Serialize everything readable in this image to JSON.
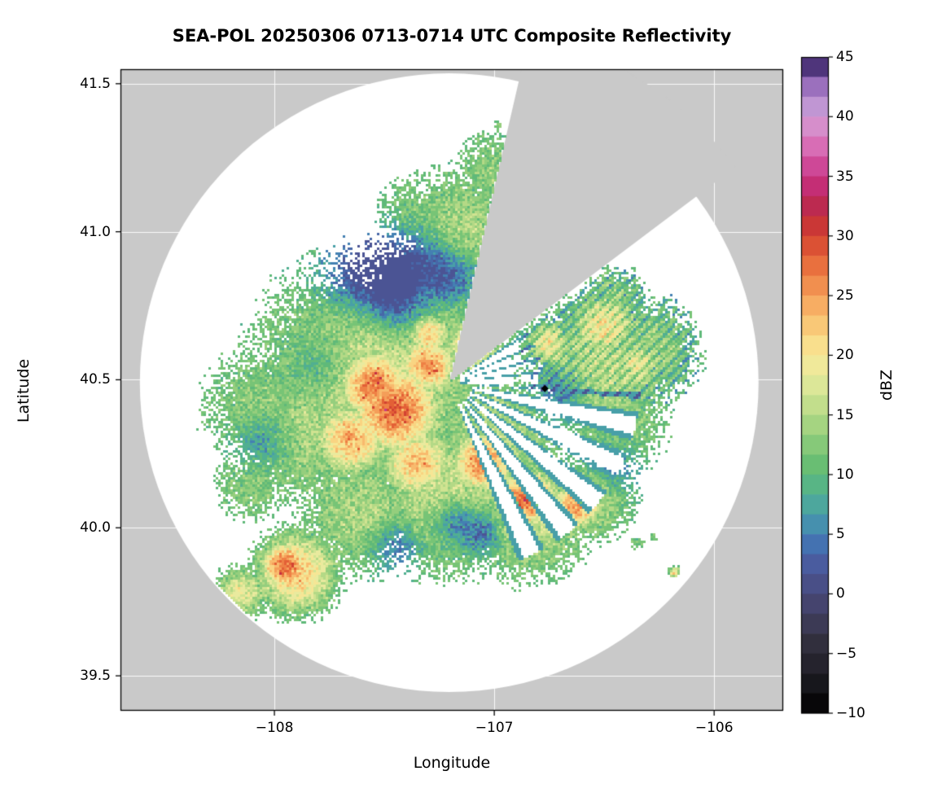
{
  "chart_data": {
    "type": "heatmap",
    "title": "SEA-POL 20250306 0713-0714 UTC Composite Reflectivity",
    "xlabel": "Longitude",
    "ylabel": "Latitude",
    "xlim": [
      -108.7,
      -105.686
    ],
    "ylim": [
      39.382,
      41.549
    ],
    "xticks": [
      {
        "value": -108,
        "label": "−108"
      },
      {
        "value": -107,
        "label": "−107"
      },
      {
        "value": -106,
        "label": "−106"
      }
    ],
    "yticks": [
      {
        "value": 39.5,
        "label": "39.5"
      },
      {
        "value": 40.0,
        "label": "40.0"
      },
      {
        "value": 40.5,
        "label": "40.5"
      },
      {
        "value": 41.0,
        "label": "41.0"
      },
      {
        "value": 41.5,
        "label": "41.5"
      }
    ],
    "background_outside_range_color": "#c9c9c9",
    "inside_range_no_echo_color": "#ffffff",
    "gridline_color": "rgba(255,255,255,0.9)",
    "colorbar": {
      "label": "dBZ",
      "min": -10,
      "max": 45,
      "segments": 33,
      "ticks": [
        {
          "value": 45,
          "label": "45"
        },
        {
          "value": 40,
          "label": "40"
        },
        {
          "value": 35,
          "label": "35"
        },
        {
          "value": 30,
          "label": "30"
        },
        {
          "value": 25,
          "label": "25"
        },
        {
          "value": 20,
          "label": "20"
        },
        {
          "value": 15,
          "label": "15"
        },
        {
          "value": 10,
          "label": "10"
        },
        {
          "value": 5,
          "label": "5"
        },
        {
          "value": 0,
          "label": "0"
        },
        {
          "value": -5,
          "label": "−5"
        },
        {
          "value": -10,
          "label": "−10"
        }
      ],
      "stops": [
        [
          -10,
          "#000000"
        ],
        [
          -7,
          "#1c1b22"
        ],
        [
          -4,
          "#32303f"
        ],
        [
          -1,
          "#45436b"
        ],
        [
          2,
          "#4c5699"
        ],
        [
          4.5,
          "#4376b5"
        ],
        [
          6.5,
          "#479daa"
        ],
        [
          8.5,
          "#52b18f"
        ],
        [
          10.5,
          "#63bc72"
        ],
        [
          12.5,
          "#86c979"
        ],
        [
          14.5,
          "#abd683"
        ],
        [
          16.5,
          "#cde290"
        ],
        [
          18.5,
          "#ebeb9f"
        ],
        [
          20.5,
          "#f9e491"
        ],
        [
          22.5,
          "#f9c877"
        ],
        [
          24.5,
          "#f6a75f"
        ],
        [
          26.5,
          "#ef8347"
        ],
        [
          28.5,
          "#e25d35"
        ],
        [
          30.5,
          "#cd3a31"
        ],
        [
          32.5,
          "#bc2a50"
        ],
        [
          34.5,
          "#c62f7c"
        ],
        [
          36.5,
          "#d254a5"
        ],
        [
          38.5,
          "#dd86c5"
        ],
        [
          40.5,
          "#c79ed8"
        ],
        [
          42.5,
          "#9b70bd"
        ],
        [
          44,
          "#553a85"
        ],
        [
          45,
          "#2e1d4a"
        ]
      ]
    },
    "radar": {
      "center_lon": -107.205,
      "center_lat": 40.49,
      "range_lat_deg": 1.045,
      "blocked_sector_az_deg": [
        13,
        53
      ],
      "no_echo_fan_az_deg": [
        93,
        160
      ],
      "fan_period_deg": 12.8,
      "apex_streaks_az_deg": [
        57,
        92
      ]
    },
    "site_marker": {
      "lon": -106.77,
      "lat": 40.47,
      "shape": "diamond",
      "color": "#000000"
    },
    "reflectivity_blobs_dbz": [
      [
        -107.55,
        40.5,
        0.55,
        17
      ],
      [
        -107.85,
        40.35,
        0.4,
        15
      ],
      [
        -108.05,
        40.4,
        0.3,
        14
      ],
      [
        -107.3,
        40.75,
        0.35,
        16
      ],
      [
        -107.15,
        41.0,
        0.3,
        15
      ],
      [
        -107.0,
        41.2,
        0.22,
        13
      ],
      [
        -107.35,
        41.05,
        0.22,
        13
      ],
      [
        -106.95,
        40.8,
        0.25,
        15
      ],
      [
        -107.75,
        40.7,
        0.25,
        13
      ],
      [
        -108.1,
        40.15,
        0.2,
        13
      ],
      [
        -107.6,
        40.05,
        0.3,
        15
      ],
      [
        -107.2,
        40.1,
        0.35,
        17
      ],
      [
        -106.85,
        40.05,
        0.3,
        17
      ],
      [
        -106.55,
        40.1,
        0.2,
        16
      ],
      [
        -107.0,
        40.3,
        0.3,
        16
      ],
      [
        -106.5,
        40.55,
        0.33,
        17
      ],
      [
        -106.3,
        40.6,
        0.25,
        15
      ],
      [
        -106.45,
        40.35,
        0.25,
        14
      ],
      [
        -106.45,
        40.78,
        0.15,
        14
      ],
      [
        -107.9,
        39.85,
        0.18,
        22
      ],
      [
        -108.15,
        39.78,
        0.12,
        18
      ],
      [
        -107.45,
        40.4,
        0.18,
        28
      ],
      [
        -107.55,
        40.48,
        0.15,
        27
      ],
      [
        -107.3,
        40.55,
        0.12,
        25
      ],
      [
        -107.65,
        40.3,
        0.15,
        24
      ],
      [
        -107.05,
        40.22,
        0.13,
        26
      ],
      [
        -106.85,
        40.1,
        0.12,
        28
      ],
      [
        -106.62,
        40.08,
        0.1,
        26
      ],
      [
        -107.3,
        40.66,
        0.1,
        23
      ],
      [
        -107.1,
        40.62,
        0.12,
        22
      ],
      [
        -106.5,
        40.68,
        0.15,
        21
      ],
      [
        -106.35,
        40.55,
        0.1,
        20
      ],
      [
        -107.95,
        39.87,
        0.1,
        28
      ],
      [
        -107.35,
        40.22,
        0.15,
        23
      ],
      [
        -106.75,
        40.62,
        0.1,
        21
      ],
      [
        -107.05,
        41.32,
        0.03,
        13
      ],
      [
        -106.98,
        41.36,
        0.025,
        12
      ],
      [
        -107.1,
        41.27,
        0.02,
        12
      ],
      [
        -106.35,
        39.95,
        0.04,
        13
      ],
      [
        -106.28,
        39.97,
        0.03,
        12
      ],
      [
        -106.18,
        39.85,
        0.025,
        21
      ],
      [
        -107.82,
        40.93,
        0.03,
        12
      ]
    ],
    "cool_patches_dbz": [
      [
        -107.6,
        40.87,
        0.14,
        -10
      ],
      [
        -107.38,
        40.86,
        0.13,
        -10
      ],
      [
        -107.2,
        40.83,
        0.1,
        -8
      ],
      [
        -107.8,
        40.55,
        0.1,
        -5
      ],
      [
        -108.05,
        40.3,
        0.1,
        -5
      ],
      [
        -107.45,
        40.75,
        0.09,
        -6
      ],
      [
        -106.7,
        40.44,
        0.08,
        -7
      ],
      [
        -107.18,
        40.02,
        0.08,
        -9
      ],
      [
        -107.05,
        39.98,
        0.07,
        -8
      ],
      [
        -106.45,
        40.2,
        0.1,
        -5
      ],
      [
        -107.45,
        39.93,
        0.08,
        -7
      ]
    ]
  }
}
